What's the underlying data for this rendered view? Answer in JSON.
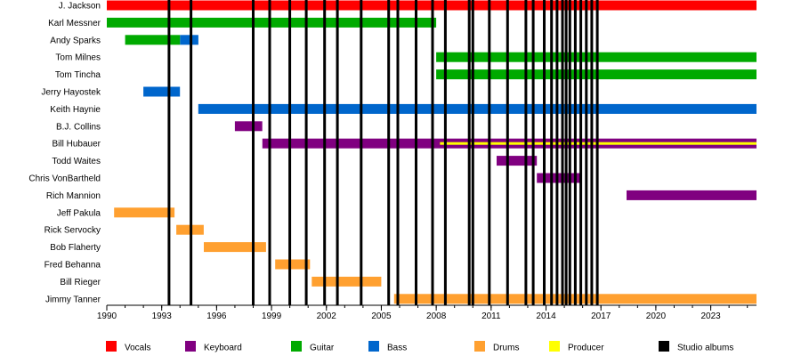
{
  "chart_data": {
    "type": "timeline",
    "title": "",
    "xlabel": "",
    "ylabel": "",
    "x_range": [
      1990,
      2025.5
    ],
    "x_ticks": [
      "1990",
      "1993",
      "1996",
      "1999",
      "2002",
      "2005",
      "2008",
      "2011",
      "2014",
      "2017",
      "2020",
      "2023"
    ],
    "grid": false,
    "legend_position": "bottom",
    "roles": [
      {
        "name": "Vocals",
        "color": "#ff0000"
      },
      {
        "name": "Keyboard",
        "color": "#800080"
      },
      {
        "name": "Guitar",
        "color": "#00aa00"
      },
      {
        "name": "Bass",
        "color": "#0066cc"
      },
      {
        "name": "Drums",
        "color": "#ffa030"
      },
      {
        "name": "Producer",
        "color": "#ffff00"
      },
      {
        "name": "Studio albums",
        "color": "#000000"
      }
    ],
    "members": [
      {
        "name": "J. Jackson",
        "spans": [
          {
            "role": "Vocals",
            "start": 1990,
            "end": 2025.5
          }
        ]
      },
      {
        "name": "Karl Messner",
        "spans": [
          {
            "role": "Guitar",
            "start": 1990,
            "end": 2008
          }
        ]
      },
      {
        "name": "Andy Sparks",
        "spans": [
          {
            "role": "Guitar",
            "start": 1991,
            "end": 1994
          },
          {
            "role": "Bass",
            "start": 1994,
            "end": 1995
          }
        ]
      },
      {
        "name": "Tom Milnes",
        "spans": [
          {
            "role": "Guitar",
            "start": 2008,
            "end": 2025.5
          }
        ]
      },
      {
        "name": "Tom Tincha",
        "spans": [
          {
            "role": "Guitar",
            "start": 2008,
            "end": 2025.5
          }
        ]
      },
      {
        "name": "Jerry Hayostek",
        "spans": [
          {
            "role": "Bass",
            "start": 1992,
            "end": 1994
          }
        ]
      },
      {
        "name": "Keith Haynie",
        "spans": [
          {
            "role": "Bass",
            "start": 1995,
            "end": 2025.5
          }
        ]
      },
      {
        "name": "B.J. Collins",
        "spans": [
          {
            "role": "Keyboard",
            "start": 1997,
            "end": 1998.5
          }
        ]
      },
      {
        "name": "Bill Hubauer",
        "spans": [
          {
            "role": "Keyboard",
            "start": 1998.5,
            "end": 2025.5
          },
          {
            "role": "Producer",
            "start": 2008.2,
            "end": 2025.5,
            "secondary": true
          }
        ]
      },
      {
        "name": "Todd Waites",
        "spans": [
          {
            "role": "Keyboard",
            "start": 2011.3,
            "end": 2013.5
          }
        ]
      },
      {
        "name": "Chris VonBartheld",
        "spans": [
          {
            "role": "Keyboard",
            "start": 2013.5,
            "end": 2015.9
          }
        ]
      },
      {
        "name": "Rich Mannion",
        "spans": [
          {
            "role": "Keyboard",
            "start": 2018.4,
            "end": 2025.5
          }
        ]
      },
      {
        "name": "Jeff Pakula",
        "spans": [
          {
            "role": "Drums",
            "start": 1990.4,
            "end": 1993.7
          }
        ]
      },
      {
        "name": "Rick Servocky",
        "spans": [
          {
            "role": "Drums",
            "start": 1993.8,
            "end": 1995.3
          }
        ]
      },
      {
        "name": "Bob Flaherty",
        "spans": [
          {
            "role": "Drums",
            "start": 1995.3,
            "end": 1998.7
          }
        ]
      },
      {
        "name": "Fred Behanna",
        "spans": [
          {
            "role": "Drums",
            "start": 1999.2,
            "end": 2001.1
          }
        ]
      },
      {
        "name": "Bill Rieger",
        "spans": [
          {
            "role": "Drums",
            "start": 2001.2,
            "end": 2005
          }
        ]
      },
      {
        "name": "Jimmy Tanner",
        "spans": [
          {
            "role": "Drums",
            "start": 2005.7,
            "end": 2025.5
          }
        ]
      }
    ],
    "studio_albums": [
      1993.4,
      1994.6,
      1998,
      1998.9,
      2000,
      2000.9,
      2001.9,
      2002.6,
      2003.9,
      2005.4,
      2005.9,
      2006.9,
      2007.8,
      2008.5,
      2009.8,
      2010,
      2010.9,
      2011.9,
      2012.9,
      2013.3,
      2013.9,
      2014.3,
      2014.6,
      2014.9,
      2015.1,
      2015.3,
      2015.6,
      2015.9,
      2016.2,
      2016.5,
      2016.8
    ]
  }
}
